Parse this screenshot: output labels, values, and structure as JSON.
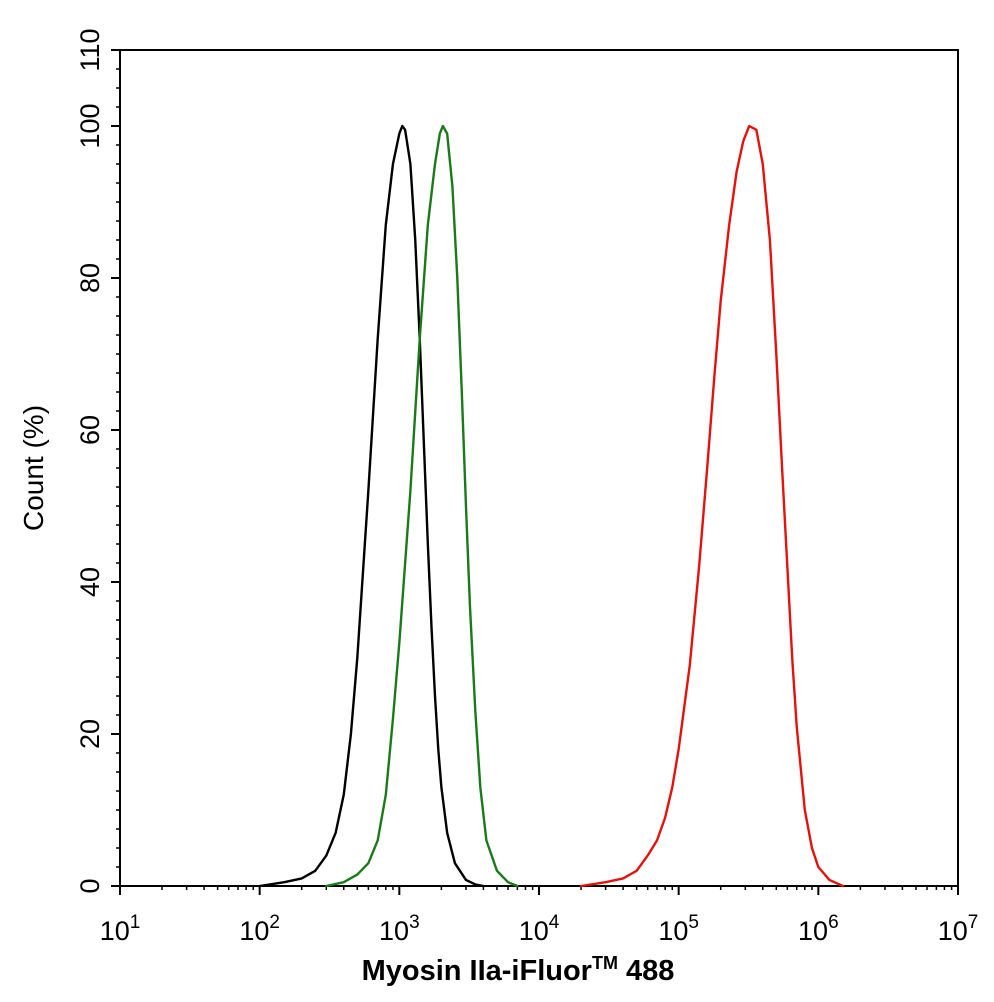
{
  "chart_data": {
    "type": "line",
    "title": "",
    "xlabel": "Myosin IIa-iFluor",
    "xlabel_tm": "TM",
    "xlabel_suffix": " 488",
    "ylabel": "Count  (%)",
    "x_scale": "log",
    "xlim": [
      10,
      10000000
    ],
    "ylim": [
      0,
      110
    ],
    "grid": false,
    "x_ticks": [
      {
        "base": "10",
        "exp": "1"
      },
      {
        "base": "10",
        "exp": "2"
      },
      {
        "base": "10",
        "exp": "3"
      },
      {
        "base": "10",
        "exp": "4"
      },
      {
        "base": "10",
        "exp": "5"
      },
      {
        "base": "10",
        "exp": "6"
      },
      {
        "base": "10",
        "exp": "7"
      }
    ],
    "y_ticks": [
      "0",
      "20",
      "40",
      "60",
      "80",
      "100",
      "110"
    ],
    "series": [
      {
        "color": "#000000",
        "points": [
          [
            100,
            0
          ],
          [
            150,
            0.5
          ],
          [
            200,
            1
          ],
          [
            250,
            2
          ],
          [
            300,
            4
          ],
          [
            350,
            7
          ],
          [
            400,
            12
          ],
          [
            450,
            20
          ],
          [
            500,
            30
          ],
          [
            600,
            52
          ],
          [
            700,
            72
          ],
          [
            800,
            87
          ],
          [
            900,
            95
          ],
          [
            1000,
            99
          ],
          [
            1050,
            100
          ],
          [
            1100,
            99.5
          ],
          [
            1200,
            95
          ],
          [
            1300,
            85
          ],
          [
            1400,
            72
          ],
          [
            1500,
            58
          ],
          [
            1600,
            45
          ],
          [
            1700,
            34
          ],
          [
            1800,
            25
          ],
          [
            1900,
            18
          ],
          [
            2000,
            13
          ],
          [
            2200,
            7
          ],
          [
            2500,
            3
          ],
          [
            3000,
            0.8
          ],
          [
            3500,
            0.2
          ],
          [
            4000,
            0
          ]
        ]
      },
      {
        "color": "#1a7a1a",
        "points": [
          [
            300,
            0
          ],
          [
            400,
            0.5
          ],
          [
            500,
            1.5
          ],
          [
            600,
            3
          ],
          [
            700,
            6
          ],
          [
            800,
            12
          ],
          [
            900,
            22
          ],
          [
            1000,
            32
          ],
          [
            1200,
            52
          ],
          [
            1400,
            72
          ],
          [
            1600,
            87
          ],
          [
            1800,
            95
          ],
          [
            1950,
            99
          ],
          [
            2050,
            100
          ],
          [
            2200,
            99
          ],
          [
            2400,
            92
          ],
          [
            2600,
            80
          ],
          [
            2800,
            65
          ],
          [
            3000,
            50
          ],
          [
            3200,
            37
          ],
          [
            3500,
            23
          ],
          [
            3800,
            13
          ],
          [
            4200,
            6
          ],
          [
            5000,
            2
          ],
          [
            6000,
            0.5
          ],
          [
            7000,
            0
          ]
        ]
      },
      {
        "color": "#e3120b",
        "points": [
          [
            20000,
            0
          ],
          [
            30000,
            0.5
          ],
          [
            40000,
            1
          ],
          [
            50000,
            2
          ],
          [
            60000,
            4
          ],
          [
            70000,
            6
          ],
          [
            80000,
            9
          ],
          [
            90000,
            13
          ],
          [
            100000,
            18
          ],
          [
            120000,
            29
          ],
          [
            140000,
            42
          ],
          [
            160000,
            55
          ],
          [
            180000,
            67
          ],
          [
            200000,
            77
          ],
          [
            230000,
            87
          ],
          [
            260000,
            94
          ],
          [
            290000,
            98
          ],
          [
            320000,
            100
          ],
          [
            360000,
            99.5
          ],
          [
            400000,
            95
          ],
          [
            450000,
            85
          ],
          [
            500000,
            70
          ],
          [
            550000,
            55
          ],
          [
            600000,
            42
          ],
          [
            650000,
            30
          ],
          [
            700000,
            21
          ],
          [
            800000,
            10
          ],
          [
            900000,
            5
          ],
          [
            1000000,
            2.5
          ],
          [
            1200000,
            0.8
          ],
          [
            1500000,
            0
          ]
        ]
      }
    ]
  }
}
